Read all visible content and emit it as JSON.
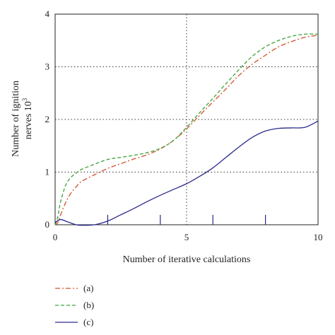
{
  "chart_data": {
    "type": "line",
    "xlabel": "Number of iterative calculations",
    "ylabel_line1": "Number of ignition",
    "ylabel_line2": "nerves 10",
    "ylabel_sup": "3",
    "xlim": [
      0,
      10
    ],
    "ylim": [
      0,
      4
    ],
    "grid": "dotted",
    "x_tick_labels": [
      "0",
      "5",
      "10"
    ],
    "y_tick_labels": [
      "0",
      "1",
      "2",
      "3",
      "4"
    ],
    "x_minor_ticks": [
      2,
      4,
      6,
      8
    ],
    "legend_placement": "below-left",
    "series": [
      {
        "name": "(a)",
        "color": "#d2522c",
        "style": "dash-dot",
        "x": [
          0,
          0.1,
          0.2,
          0.4,
          0.6,
          0.8,
          1.0,
          1.5,
          2.0,
          2.5,
          3.0,
          3.5,
          4.0,
          4.5,
          5.0,
          5.5,
          6.0,
          6.5,
          7.0,
          7.5,
          8.0,
          8.5,
          9.0,
          9.5,
          10.0
        ],
        "y": [
          0,
          0.04,
          0.18,
          0.42,
          0.6,
          0.72,
          0.82,
          0.95,
          1.07,
          1.16,
          1.25,
          1.33,
          1.44,
          1.6,
          1.82,
          2.08,
          2.33,
          2.58,
          2.84,
          3.05,
          3.22,
          3.38,
          3.48,
          3.56,
          3.6
        ]
      },
      {
        "name": "(b)",
        "color": "#3fa33a",
        "style": "dashed",
        "x": [
          0,
          0.1,
          0.2,
          0.4,
          0.6,
          0.8,
          1.0,
          1.5,
          2.0,
          2.5,
          3.0,
          3.5,
          4.0,
          4.5,
          5.0,
          5.5,
          6.0,
          6.5,
          7.0,
          7.5,
          8.0,
          8.5,
          9.0,
          9.5,
          10.0
        ],
        "y": [
          0,
          0.15,
          0.42,
          0.75,
          0.9,
          0.98,
          1.05,
          1.15,
          1.24,
          1.28,
          1.32,
          1.37,
          1.45,
          1.6,
          1.85,
          2.13,
          2.4,
          2.68,
          2.95,
          3.2,
          3.38,
          3.5,
          3.58,
          3.62,
          3.62
        ]
      },
      {
        "name": "(c)",
        "color": "#2a2a8c",
        "style": "solid",
        "x": [
          0,
          0.2,
          0.5,
          0.8,
          1.0,
          1.5,
          2.0,
          2.5,
          3.0,
          3.5,
          4.0,
          4.5,
          5.0,
          5.5,
          6.0,
          6.5,
          7.0,
          7.5,
          8.0,
          8.5,
          9.0,
          9.5,
          10.0
        ],
        "y": [
          0.04,
          0.1,
          0.05,
          0.0,
          -0.01,
          0.0,
          0.07,
          0.19,
          0.31,
          0.44,
          0.56,
          0.67,
          0.78,
          0.92,
          1.08,
          1.28,
          1.48,
          1.66,
          1.78,
          1.83,
          1.84,
          1.85,
          1.97
        ]
      }
    ]
  }
}
